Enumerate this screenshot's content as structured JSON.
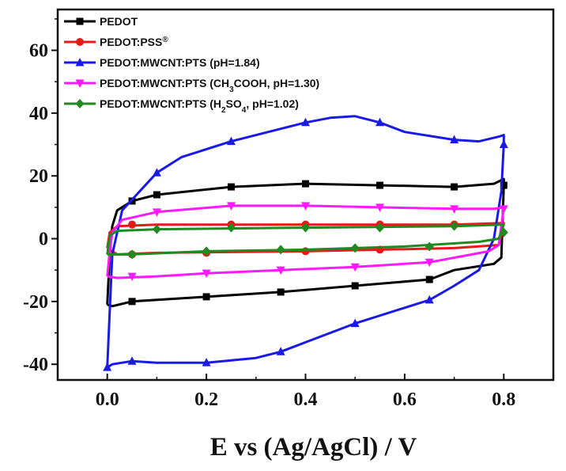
{
  "chart_data": {
    "type": "line",
    "title": "",
    "xlabel": "E vs (Ag/AgCl) / V",
    "ylabel": "",
    "xlim": [
      -0.1,
      0.9
    ],
    "ylim": [
      -45,
      73
    ],
    "x_ticks": [
      "0.0",
      "0.2",
      "0.4",
      "0.6",
      "0.8"
    ],
    "y_ticks": [
      "-40",
      "-20",
      "0",
      "20",
      "40",
      "60"
    ],
    "grid": false,
    "legend_position": "top-left",
    "series": [
      {
        "name": "PEDOT",
        "legend_parts": [
          {
            "t": "PEDOT",
            "sub": false
          }
        ],
        "color": "#000000",
        "marker": "square",
        "upper": [
          [
            0.0,
            -21
          ],
          [
            0.005,
            -5
          ],
          [
            0.01,
            4
          ],
          [
            0.02,
            9
          ],
          [
            0.05,
            12
          ],
          [
            0.1,
            14
          ],
          [
            0.25,
            16.5
          ],
          [
            0.4,
            17.5
          ],
          [
            0.55,
            17
          ],
          [
            0.7,
            16.5
          ],
          [
            0.78,
            17.5
          ],
          [
            0.8,
            19
          ]
        ],
        "lower": [
          [
            0.8,
            19
          ],
          [
            0.8,
            17
          ],
          [
            0.795,
            -6
          ],
          [
            0.78,
            -8
          ],
          [
            0.7,
            -10
          ],
          [
            0.65,
            -13
          ],
          [
            0.5,
            -15
          ],
          [
            0.35,
            -17
          ],
          [
            0.2,
            -18.5
          ],
          [
            0.05,
            -20
          ],
          [
            0.01,
            -21.5
          ],
          [
            0.0,
            -21
          ]
        ],
        "marker_points": [
          [
            0.05,
            12
          ],
          [
            0.1,
            14
          ],
          [
            0.25,
            16.5
          ],
          [
            0.4,
            17.5
          ],
          [
            0.55,
            17
          ],
          [
            0.7,
            16.5
          ],
          [
            0.8,
            17
          ],
          [
            0.65,
            -13
          ],
          [
            0.5,
            -15
          ],
          [
            0.35,
            -17
          ],
          [
            0.2,
            -18.5
          ],
          [
            0.05,
            -20
          ]
        ]
      },
      {
        "name": "PEDOT:PSS®",
        "legend_parts": [
          {
            "t": "PEDOT:PSS",
            "sub": false
          },
          {
            "t": "®",
            "sup": true
          }
        ],
        "color": "#e8191b",
        "marker": "circle",
        "upper": [
          [
            0.0,
            -3
          ],
          [
            0.005,
            2
          ],
          [
            0.02,
            4
          ],
          [
            0.1,
            4.5
          ],
          [
            0.4,
            4.5
          ],
          [
            0.7,
            4.5
          ],
          [
            0.8,
            5
          ]
        ],
        "lower": [
          [
            0.8,
            5
          ],
          [
            0.79,
            -2
          ],
          [
            0.7,
            -3
          ],
          [
            0.4,
            -4
          ],
          [
            0.1,
            -4.5
          ],
          [
            0.02,
            -5
          ],
          [
            0.0,
            -3
          ]
        ],
        "marker_points": [
          [
            0.05,
            4.5
          ],
          [
            0.25,
            4.5
          ],
          [
            0.4,
            4.5
          ],
          [
            0.55,
            4.5
          ],
          [
            0.7,
            4.5
          ],
          [
            0.55,
            -3.5
          ],
          [
            0.4,
            -4
          ],
          [
            0.2,
            -4.5
          ],
          [
            0.05,
            -5
          ]
        ]
      },
      {
        "name": "PEDOT:MWCNT:PTS (pH=1.84)",
        "legend_parts": [
          {
            "t": "PEDOT:MWCNT:PTS (pH=1.84)",
            "sub": false
          }
        ],
        "color": "#1a1ae8",
        "marker": "triangle-up",
        "upper": [
          [
            0.0,
            -41
          ],
          [
            0.003,
            -30
          ],
          [
            0.01,
            -5
          ],
          [
            0.03,
            9
          ],
          [
            0.1,
            21
          ],
          [
            0.15,
            26
          ],
          [
            0.25,
            31
          ],
          [
            0.35,
            35
          ],
          [
            0.4,
            37
          ],
          [
            0.45,
            38.5
          ],
          [
            0.5,
            39
          ],
          [
            0.55,
            37
          ],
          [
            0.6,
            34
          ],
          [
            0.7,
            31.5
          ],
          [
            0.75,
            31
          ],
          [
            0.79,
            32.5
          ],
          [
            0.8,
            33
          ]
        ],
        "lower": [
          [
            0.8,
            33
          ],
          [
            0.8,
            30
          ],
          [
            0.795,
            15
          ],
          [
            0.78,
            0
          ],
          [
            0.75,
            -10
          ],
          [
            0.7,
            -15
          ],
          [
            0.65,
            -19.5
          ],
          [
            0.6,
            -22
          ],
          [
            0.5,
            -27
          ],
          [
            0.4,
            -33
          ],
          [
            0.35,
            -36
          ],
          [
            0.3,
            -38
          ],
          [
            0.2,
            -39.5
          ],
          [
            0.1,
            -39.5
          ],
          [
            0.05,
            -39
          ],
          [
            0.01,
            -40
          ],
          [
            0.0,
            -41
          ]
        ],
        "marker_points": [
          [
            0.1,
            21
          ],
          [
            0.25,
            31
          ],
          [
            0.4,
            37
          ],
          [
            0.55,
            37
          ],
          [
            0.7,
            31.5
          ],
          [
            0.8,
            30
          ],
          [
            0.65,
            -19.5
          ],
          [
            0.5,
            -27
          ],
          [
            0.35,
            -36
          ],
          [
            0.2,
            -39.5
          ],
          [
            0.05,
            -39
          ],
          [
            0.0,
            -41
          ]
        ]
      },
      {
        "name": "PEDOT:MWCNT:PTS (CH3COOH, pH=1.30)",
        "legend_parts": [
          {
            "t": "PEDOT:MWCNT:PTS (CH",
            "sub": false
          },
          {
            "t": "3",
            "sub": true
          },
          {
            "t": "COOH, pH=1.30)",
            "sub": false
          }
        ],
        "color": "#ff19ff",
        "marker": "triangle-down",
        "upper": [
          [
            0.0,
            -12
          ],
          [
            0.005,
            -4
          ],
          [
            0.01,
            2
          ],
          [
            0.03,
            6
          ],
          [
            0.1,
            8.5
          ],
          [
            0.25,
            10.5
          ],
          [
            0.4,
            10.5
          ],
          [
            0.55,
            10
          ],
          [
            0.7,
            9.5
          ],
          [
            0.78,
            9.5
          ],
          [
            0.8,
            10
          ]
        ],
        "lower": [
          [
            0.8,
            10
          ],
          [
            0.79,
            -2
          ],
          [
            0.77,
            -4
          ],
          [
            0.65,
            -7.5
          ],
          [
            0.5,
            -9
          ],
          [
            0.35,
            -10
          ],
          [
            0.2,
            -11
          ],
          [
            0.1,
            -12
          ],
          [
            0.02,
            -12.5
          ],
          [
            0.0,
            -12
          ]
        ],
        "marker_points": [
          [
            0.1,
            8.5
          ],
          [
            0.25,
            10.5
          ],
          [
            0.4,
            10.5
          ],
          [
            0.55,
            10
          ],
          [
            0.7,
            9.5
          ],
          [
            0.8,
            9.5
          ],
          [
            0.65,
            -7.5
          ],
          [
            0.5,
            -9
          ],
          [
            0.35,
            -10
          ],
          [
            0.2,
            -11
          ],
          [
            0.05,
            -12
          ]
        ]
      },
      {
        "name": "PEDOT:MWCNT:PTS (H2SO4, pH=1.02)",
        "legend_parts": [
          {
            "t": "PEDOT:MWCNT:PTS (H",
            "sub": false
          },
          {
            "t": "2",
            "sub": true
          },
          {
            "t": "SO",
            "sub": false
          },
          {
            "t": "4",
            "sub": true
          },
          {
            "t": ", pH=1.02)",
            "sub": false
          }
        ],
        "color": "#1f8a1f",
        "marker": "diamond",
        "upper": [
          [
            0.0,
            -5
          ],
          [
            0.005,
            1
          ],
          [
            0.02,
            2.5
          ],
          [
            0.1,
            3
          ],
          [
            0.4,
            3.5
          ],
          [
            0.7,
            4
          ],
          [
            0.8,
            4.5
          ]
        ],
        "lower": [
          [
            0.8,
            4.5
          ],
          [
            0.79,
            0
          ],
          [
            0.75,
            -1
          ],
          [
            0.6,
            -2.5
          ],
          [
            0.4,
            -3.5
          ],
          [
            0.2,
            -4
          ],
          [
            0.05,
            -5
          ],
          [
            0.0,
            -5
          ]
        ],
        "marker_points": [
          [
            0.1,
            3
          ],
          [
            0.25,
            3.5
          ],
          [
            0.4,
            3.5
          ],
          [
            0.55,
            3.5
          ],
          [
            0.7,
            4
          ],
          [
            0.8,
            2
          ],
          [
            0.65,
            -2.5
          ],
          [
            0.5,
            -3
          ],
          [
            0.35,
            -3.5
          ],
          [
            0.2,
            -4
          ],
          [
            0.05,
            -5
          ]
        ]
      }
    ]
  }
}
